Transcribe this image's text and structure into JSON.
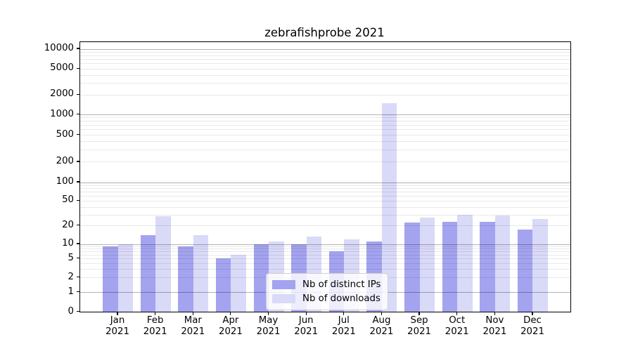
{
  "title": "zebrafishprobe 2021",
  "chart_data": {
    "type": "bar",
    "title": "zebrafishprobe 2021",
    "categories": [
      "Jan",
      "Feb",
      "Mar",
      "Apr",
      "May",
      "Jun",
      "Jul",
      "Aug",
      "Sep",
      "Oct",
      "Nov",
      "Dec"
    ],
    "year_label": "2021",
    "series": [
      {
        "name": "Nb of distinct IPs",
        "color": "#a3a3ef",
        "values": [
          9,
          14,
          9,
          5,
          10,
          10,
          7,
          11,
          22,
          23,
          23,
          17
        ]
      },
      {
        "name": "Nb of downloads",
        "color": "#d9d9f8",
        "values": [
          10,
          28,
          14,
          6,
          11,
          13,
          12,
          1500,
          27,
          30,
          29,
          25
        ]
      }
    ],
    "xlabel": "",
    "ylabel": "",
    "yscale": "symlog",
    "y_ticks": [
      0,
      1,
      2,
      5,
      10,
      20,
      50,
      100,
      200,
      500,
      1000,
      2000,
      5000,
      10000
    ],
    "ylim": [
      0,
      13000
    ],
    "grid": true,
    "legend_position": "lower center"
  }
}
